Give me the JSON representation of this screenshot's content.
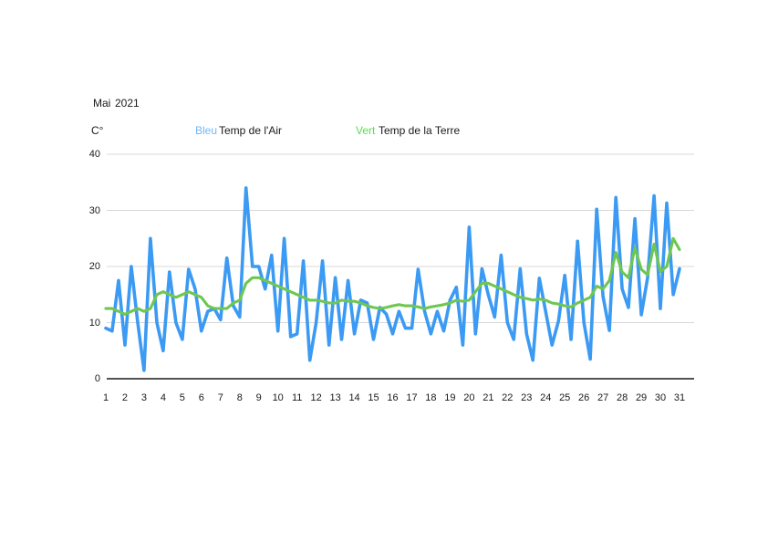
{
  "header": {
    "month": "Mai",
    "year": "2021",
    "unit": "C°"
  },
  "legend": {
    "bleu_word": "Bleu",
    "air_label": "Temp de l'Air",
    "vert_word": "Vert",
    "terre_label": "Temp de la Terre"
  },
  "chart_data": {
    "type": "line",
    "title": "Mai 2021",
    "ylabel": "C°",
    "xlabel": "",
    "ylim": [
      0,
      40
    ],
    "xlim": [
      1,
      31.7
    ],
    "yticks": [
      40,
      30,
      20,
      10,
      0
    ],
    "xticks": [
      1,
      2,
      3,
      4,
      5,
      6,
      7,
      8,
      9,
      10,
      11,
      12,
      13,
      14,
      15,
      16,
      17,
      18,
      19,
      20,
      21,
      22,
      23,
      24,
      25,
      26,
      27,
      28,
      29,
      30,
      31
    ],
    "grid": "horizontal-only",
    "legend_position": "top",
    "colors": {
      "air": "#3B9AF3",
      "soil": "#6EC751",
      "bleu_word": "#6FB7F8",
      "vert_word": "#55E14E",
      "grid": "#D8D8D8",
      "axis": "#1A1A1A"
    },
    "series": [
      {
        "name": "Temp de l'Air",
        "color_key": "air",
        "points": [
          [
            1,
            9
          ],
          [
            1.33,
            8.5
          ],
          [
            1.67,
            17.5
          ],
          [
            2,
            6
          ],
          [
            2.33,
            20
          ],
          [
            2.67,
            10
          ],
          [
            3,
            1.5
          ],
          [
            3.33,
            25
          ],
          [
            3.67,
            10
          ],
          [
            4,
            5
          ],
          [
            4.33,
            19
          ],
          [
            4.67,
            10
          ],
          [
            5,
            7
          ],
          [
            5.33,
            19.5
          ],
          [
            5.67,
            16
          ],
          [
            6,
            8.5
          ],
          [
            6.33,
            12
          ],
          [
            6.67,
            12.5
          ],
          [
            7,
            10.5
          ],
          [
            7.33,
            21.5
          ],
          [
            7.67,
            13
          ],
          [
            8,
            11
          ],
          [
            8.33,
            34
          ],
          [
            8.67,
            20
          ],
          [
            9,
            20
          ],
          [
            9.33,
            16
          ],
          [
            9.67,
            22
          ],
          [
            10,
            8.5
          ],
          [
            10.33,
            25
          ],
          [
            10.67,
            7.5
          ],
          [
            11,
            8
          ],
          [
            11.33,
            21
          ],
          [
            11.67,
            3.3
          ],
          [
            12,
            10
          ],
          [
            12.33,
            21
          ],
          [
            12.67,
            6
          ],
          [
            13,
            18
          ],
          [
            13.33,
            7
          ],
          [
            13.67,
            17.5
          ],
          [
            14,
            8
          ],
          [
            14.33,
            14
          ],
          [
            14.67,
            13.5
          ],
          [
            15,
            7
          ],
          [
            15.33,
            12.7
          ],
          [
            15.67,
            11.5
          ],
          [
            16,
            8
          ],
          [
            16.33,
            12
          ],
          [
            16.67,
            9
          ],
          [
            17,
            9
          ],
          [
            17.33,
            19.5
          ],
          [
            17.67,
            12
          ],
          [
            18,
            8
          ],
          [
            18.33,
            12
          ],
          [
            18.67,
            8.5
          ],
          [
            19,
            14
          ],
          [
            19.33,
            16.3
          ],
          [
            19.67,
            6
          ],
          [
            20,
            27
          ],
          [
            20.33,
            8
          ],
          [
            20.67,
            19.6
          ],
          [
            21,
            15
          ],
          [
            21.33,
            11
          ],
          [
            21.67,
            22
          ],
          [
            22,
            10
          ],
          [
            22.33,
            7
          ],
          [
            22.67,
            19.6
          ],
          [
            23,
            8
          ],
          [
            23.33,
            3.3
          ],
          [
            23.67,
            17.9
          ],
          [
            24,
            12
          ],
          [
            24.33,
            6
          ],
          [
            24.67,
            10.3
          ],
          [
            25,
            18.4
          ],
          [
            25.33,
            7
          ],
          [
            25.67,
            24.5
          ],
          [
            26,
            10
          ],
          [
            26.33,
            3.5
          ],
          [
            26.67,
            30.2
          ],
          [
            27,
            14.7
          ],
          [
            27.33,
            8.6
          ],
          [
            27.67,
            32.3
          ],
          [
            28,
            16
          ],
          [
            28.33,
            12.7
          ],
          [
            28.67,
            28.5
          ],
          [
            29,
            11.4
          ],
          [
            29.33,
            18
          ],
          [
            29.67,
            32.6
          ],
          [
            30,
            12.5
          ],
          [
            30.33,
            31.3
          ],
          [
            30.67,
            15
          ],
          [
            31,
            19.6
          ]
        ]
      },
      {
        "name": "Temp de la Terre",
        "color_key": "soil",
        "points": [
          [
            1,
            12.5
          ],
          [
            1.33,
            12.5
          ],
          [
            1.67,
            12
          ],
          [
            2,
            11.5
          ],
          [
            2.33,
            12
          ],
          [
            2.67,
            12.5
          ],
          [
            3,
            12
          ],
          [
            3.33,
            12.5
          ],
          [
            3.67,
            15
          ],
          [
            4,
            15.5
          ],
          [
            4.33,
            15
          ],
          [
            4.67,
            14.5
          ],
          [
            5,
            15
          ],
          [
            5.33,
            15.5
          ],
          [
            5.67,
            15
          ],
          [
            6,
            14.5
          ],
          [
            6.33,
            13
          ],
          [
            6.67,
            12.5
          ],
          [
            7,
            12.5
          ],
          [
            7.33,
            12.5
          ],
          [
            7.67,
            13.5
          ],
          [
            8,
            14
          ],
          [
            8.33,
            17
          ],
          [
            8.67,
            18
          ],
          [
            9,
            18
          ],
          [
            9.33,
            17.5
          ],
          [
            9.67,
            17
          ],
          [
            10,
            16.5
          ],
          [
            10.33,
            16
          ],
          [
            10.67,
            15.5
          ],
          [
            11,
            15
          ],
          [
            11.33,
            14.5
          ],
          [
            11.67,
            14
          ],
          [
            12,
            14
          ],
          [
            12.33,
            13.8
          ],
          [
            12.67,
            13.5
          ],
          [
            13,
            13.5
          ],
          [
            13.33,
            14
          ],
          [
            13.67,
            13.8
          ],
          [
            14,
            13.8
          ],
          [
            14.33,
            13.5
          ],
          [
            14.67,
            13
          ],
          [
            15,
            12.7
          ],
          [
            15.33,
            12.5
          ],
          [
            15.67,
            12.7
          ],
          [
            16,
            13
          ],
          [
            16.33,
            13.2
          ],
          [
            16.67,
            13
          ],
          [
            17,
            13
          ],
          [
            17.33,
            12.8
          ],
          [
            17.67,
            12.5
          ],
          [
            18,
            12.8
          ],
          [
            18.33,
            13
          ],
          [
            18.67,
            13.2
          ],
          [
            19,
            13.5
          ],
          [
            19.33,
            14
          ],
          [
            19.67,
            13.8
          ],
          [
            20,
            14
          ],
          [
            20.33,
            15.5
          ],
          [
            20.67,
            17
          ],
          [
            21,
            17
          ],
          [
            21.33,
            16.5
          ],
          [
            21.67,
            16
          ],
          [
            22,
            15.5
          ],
          [
            22.33,
            15
          ],
          [
            22.67,
            14.5
          ],
          [
            23,
            14.3
          ],
          [
            23.33,
            14
          ],
          [
            23.67,
            14.2
          ],
          [
            24,
            14
          ],
          [
            24.33,
            13.5
          ],
          [
            24.67,
            13.3
          ],
          [
            25,
            13
          ],
          [
            25.33,
            12.8
          ],
          [
            25.67,
            13.5
          ],
          [
            26,
            14
          ],
          [
            26.33,
            14.5
          ],
          [
            26.67,
            16.5
          ],
          [
            27,
            16
          ],
          [
            27.33,
            17.5
          ],
          [
            27.67,
            22.5
          ],
          [
            28,
            19
          ],
          [
            28.33,
            18
          ],
          [
            28.67,
            23.3
          ],
          [
            29,
            19.5
          ],
          [
            29.33,
            18.5
          ],
          [
            29.67,
            24
          ],
          [
            30,
            19.1
          ],
          [
            30.33,
            20
          ],
          [
            30.67,
            25
          ],
          [
            31,
            23
          ]
        ]
      }
    ]
  }
}
